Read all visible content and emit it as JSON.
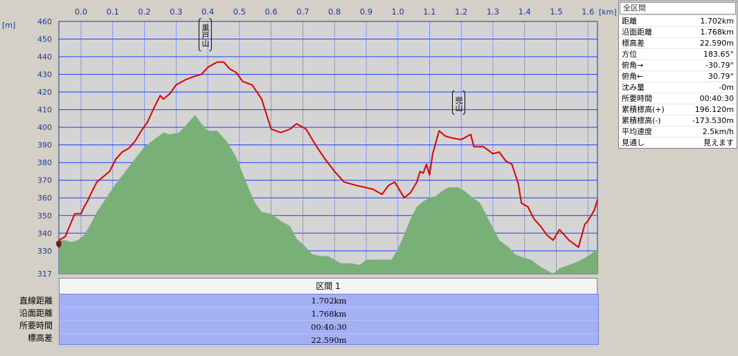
{
  "units": {
    "x": "[km]",
    "y": "[m]"
  },
  "chart_data": {
    "type": "area+line",
    "xlabel": "[km]",
    "ylabel": "[m]",
    "xlim": [
      -0.07,
      1.63
    ],
    "ylim": [
      317,
      460
    ],
    "x_ticks": [
      "0.0",
      "0.1",
      "0.2",
      "0.3",
      "0.4",
      "0.5",
      "0.6",
      "0.7",
      "0.8",
      "0.9",
      "1.0",
      "1.1",
      "1.2",
      "1.3",
      "1.4",
      "1.5",
      "1.6"
    ],
    "y_ticks": [
      "460",
      "450",
      "440",
      "430",
      "420",
      "410",
      "400",
      "390",
      "380",
      "370",
      "360",
      "350",
      "340",
      "330",
      "317"
    ],
    "series": [
      {
        "color": "#e00000",
        "points": [
          [
            -0.07,
            336
          ],
          [
            -0.05,
            338
          ],
          [
            -0.02,
            351
          ],
          [
            0.0,
            351
          ],
          [
            0.01,
            355
          ],
          [
            0.02,
            358
          ],
          [
            0.03,
            362
          ],
          [
            0.05,
            369
          ],
          [
            0.07,
            372
          ],
          [
            0.09,
            375
          ],
          [
            0.11,
            382
          ],
          [
            0.13,
            386
          ],
          [
            0.15,
            388
          ],
          [
            0.17,
            392
          ],
          [
            0.19,
            398
          ],
          [
            0.21,
            403
          ],
          [
            0.23,
            411
          ],
          [
            0.25,
            418
          ],
          [
            0.26,
            416
          ],
          [
            0.28,
            419
          ],
          [
            0.3,
            424
          ],
          [
            0.33,
            427
          ],
          [
            0.36,
            429
          ],
          [
            0.38,
            430
          ],
          [
            0.4,
            434
          ],
          [
            0.43,
            437
          ],
          [
            0.45,
            437
          ],
          [
            0.47,
            433
          ],
          [
            0.49,
            431
          ],
          [
            0.51,
            426
          ],
          [
            0.54,
            424
          ],
          [
            0.57,
            416
          ],
          [
            0.6,
            399
          ],
          [
            0.63,
            397
          ],
          [
            0.66,
            399
          ],
          [
            0.68,
            402
          ],
          [
            0.71,
            399
          ],
          [
            0.74,
            390
          ],
          [
            0.77,
            382
          ],
          [
            0.8,
            375
          ],
          [
            0.83,
            369
          ],
          [
            0.87,
            367
          ],
          [
            0.92,
            365
          ],
          [
            0.95,
            362
          ],
          [
            0.97,
            367
          ],
          [
            0.99,
            369
          ],
          [
            1.02,
            360
          ],
          [
            1.04,
            363
          ],
          [
            1.06,
            369
          ],
          [
            1.07,
            375
          ],
          [
            1.08,
            374
          ],
          [
            1.09,
            379
          ],
          [
            1.1,
            373
          ],
          [
            1.11,
            385
          ],
          [
            1.13,
            398
          ],
          [
            1.15,
            395
          ],
          [
            1.17,
            394
          ],
          [
            1.2,
            393
          ],
          [
            1.23,
            396
          ],
          [
            1.24,
            389
          ],
          [
            1.27,
            389
          ],
          [
            1.3,
            385
          ],
          [
            1.32,
            386
          ],
          [
            1.34,
            381
          ],
          [
            1.36,
            379
          ],
          [
            1.38,
            368
          ],
          [
            1.39,
            357
          ],
          [
            1.41,
            355
          ],
          [
            1.43,
            348
          ],
          [
            1.45,
            344
          ],
          [
            1.47,
            339
          ],
          [
            1.49,
            336
          ],
          [
            1.51,
            342
          ],
          [
            1.54,
            336
          ],
          [
            1.57,
            332
          ],
          [
            1.59,
            345
          ],
          [
            1.6,
            347
          ],
          [
            1.62,
            353
          ],
          [
            1.63,
            359
          ]
        ]
      },
      {
        "color": "#78b078",
        "fill": "#78b078",
        "points": [
          [
            -0.07,
            336
          ],
          [
            -0.05,
            336
          ],
          [
            -0.03,
            335
          ],
          [
            -0.01,
            336
          ],
          [
            0.01,
            339
          ],
          [
            0.03,
            345
          ],
          [
            0.05,
            352
          ],
          [
            0.08,
            360
          ],
          [
            0.11,
            368
          ],
          [
            0.14,
            375
          ],
          [
            0.17,
            382
          ],
          [
            0.2,
            389
          ],
          [
            0.23,
            393
          ],
          [
            0.26,
            397
          ],
          [
            0.28,
            396
          ],
          [
            0.31,
            397
          ],
          [
            0.33,
            401
          ],
          [
            0.36,
            407
          ],
          [
            0.38,
            402
          ],
          [
            0.4,
            398
          ],
          [
            0.43,
            398
          ],
          [
            0.46,
            392
          ],
          [
            0.49,
            383
          ],
          [
            0.51,
            374
          ],
          [
            0.53,
            365
          ],
          [
            0.55,
            357
          ],
          [
            0.57,
            352
          ],
          [
            0.6,
            351
          ],
          [
            0.63,
            347
          ],
          [
            0.66,
            344
          ],
          [
            0.68,
            337
          ],
          [
            0.71,
            332
          ],
          [
            0.73,
            328
          ],
          [
            0.76,
            327
          ],
          [
            0.78,
            327
          ],
          [
            0.8,
            325
          ],
          [
            0.82,
            323
          ],
          [
            0.85,
            323
          ],
          [
            0.88,
            322
          ],
          [
            0.9,
            325
          ],
          [
            0.93,
            325
          ],
          [
            0.96,
            325
          ],
          [
            0.98,
            325
          ],
          [
            1.0,
            331
          ],
          [
            1.02,
            339
          ],
          [
            1.04,
            348
          ],
          [
            1.06,
            355
          ],
          [
            1.08,
            358
          ],
          [
            1.1,
            360
          ],
          [
            1.12,
            361
          ],
          [
            1.14,
            364
          ],
          [
            1.16,
            366
          ],
          [
            1.19,
            366
          ],
          [
            1.21,
            364
          ],
          [
            1.23,
            361
          ],
          [
            1.26,
            357
          ],
          [
            1.28,
            350
          ],
          [
            1.3,
            343
          ],
          [
            1.32,
            336
          ],
          [
            1.35,
            332
          ],
          [
            1.37,
            328
          ],
          [
            1.4,
            326
          ],
          [
            1.42,
            325
          ],
          [
            1.45,
            321
          ],
          [
            1.47,
            319
          ],
          [
            1.49,
            317
          ],
          [
            1.51,
            320
          ],
          [
            1.54,
            322
          ],
          [
            1.57,
            324
          ],
          [
            1.6,
            327
          ],
          [
            1.63,
            331
          ]
        ]
      }
    ],
    "annotations": [
      {
        "text": "黒戸山",
        "x": 0.44,
        "y": 437
      },
      {
        "text": "兜山",
        "x": 1.24,
        "y": 396
      }
    ]
  },
  "summary": {
    "title": "全区間",
    "rows": [
      {
        "label": "距離",
        "value": "1.702km"
      },
      {
        "label": "沿面距離",
        "value": "1.768km"
      },
      {
        "label": "標高差",
        "value": "22.590m"
      },
      {
        "label": "方位",
        "value": "183.65°"
      },
      {
        "label": "俯角→",
        "value": "-30.79°"
      },
      {
        "label": "俯角←",
        "value": "30.79°"
      },
      {
        "label": "沈み量",
        "value": "-0m"
      },
      {
        "label": "所要時間",
        "value": "00:40:30"
      },
      {
        "label": "累積標高(+)",
        "value": "196.120m"
      },
      {
        "label": "累積標高(-)",
        "value": "-173.530m"
      },
      {
        "label": "平均速度",
        "value": "2.5km/h"
      },
      {
        "label": "見通し",
        "value": "見えます"
      }
    ]
  },
  "section": {
    "header": "区間 1",
    "row_labels": [
      "直線距離",
      "沿面距離",
      "所要時間",
      "標高差"
    ],
    "values": [
      "1.702km",
      "1.768km",
      "00:40:30",
      "22.590m"
    ]
  }
}
